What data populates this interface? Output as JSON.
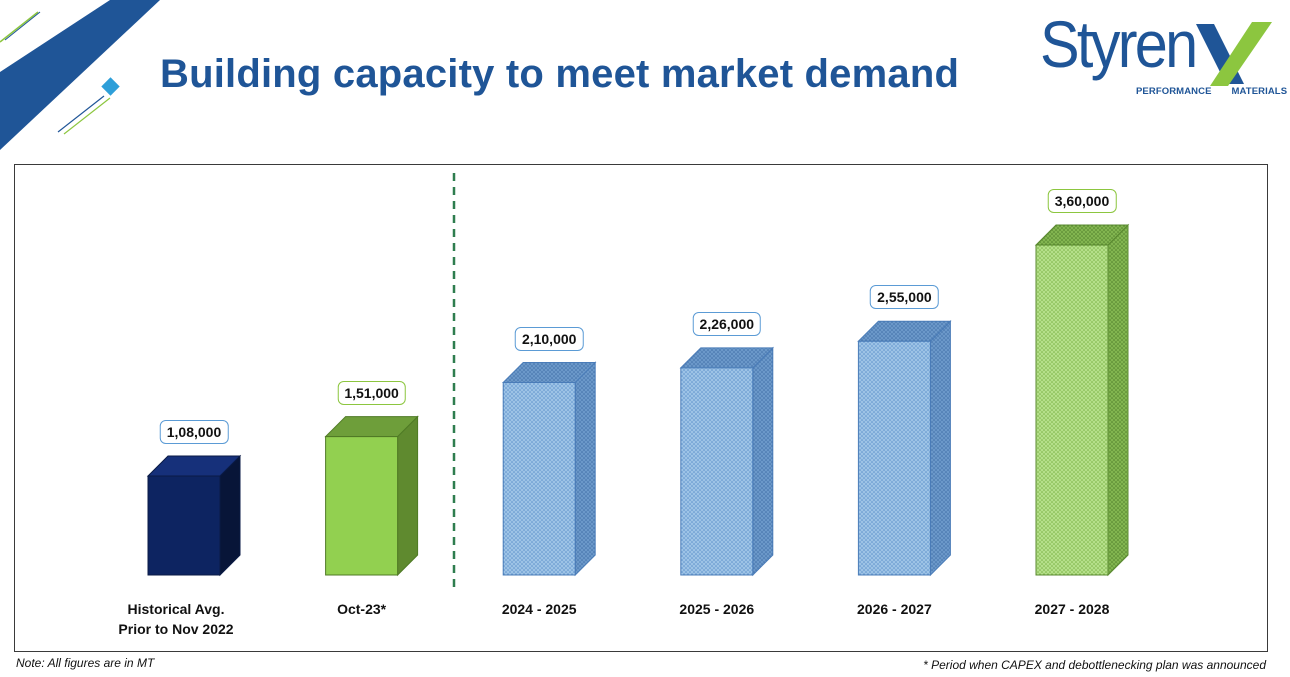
{
  "title": "Building capacity to meet market demand",
  "logo": {
    "word": "Styren",
    "tagline_left": "PERFORMANCE",
    "tagline_right": "MATERIALS",
    "blue": "#1f5597",
    "green": "#8cc63f"
  },
  "chart_data": {
    "type": "bar",
    "categories": [
      [
        "Historical Avg.",
        "Prior to Nov 2022"
      ],
      [
        "Oct-23*"
      ],
      [
        "2024 - 2025"
      ],
      [
        "2025 - 2026"
      ],
      [
        "2026 - 2027"
      ],
      [
        "2027 - 2028"
      ]
    ],
    "values": [
      108000,
      151000,
      210000,
      226000,
      255000,
      360000
    ],
    "data_labels": [
      "1,08,000",
      "1,51,000",
      "2,10,000",
      "2,26,000",
      "2,55,000",
      "3,60,000"
    ],
    "bar_styles": [
      "navy",
      "green",
      "blue-pattern",
      "blue-pattern",
      "blue-pattern",
      "green-pattern"
    ],
    "colors": {
      "navy": "#0d2461",
      "green": "#92d050",
      "blue_pattern": "#9dc3e6",
      "green_pattern": "#b5e08a",
      "label_border_blue": "#5b9bd5",
      "label_border_green": "#8cc63f"
    },
    "ylim": [
      0,
      360000
    ],
    "divider_after_index": 1,
    "grid": false,
    "xlabel": "",
    "ylabel": ""
  },
  "notes": {
    "left": "Note: All figures are in MT",
    "right": "* Period when CAPEX and debottlenecking plan was announced"
  }
}
